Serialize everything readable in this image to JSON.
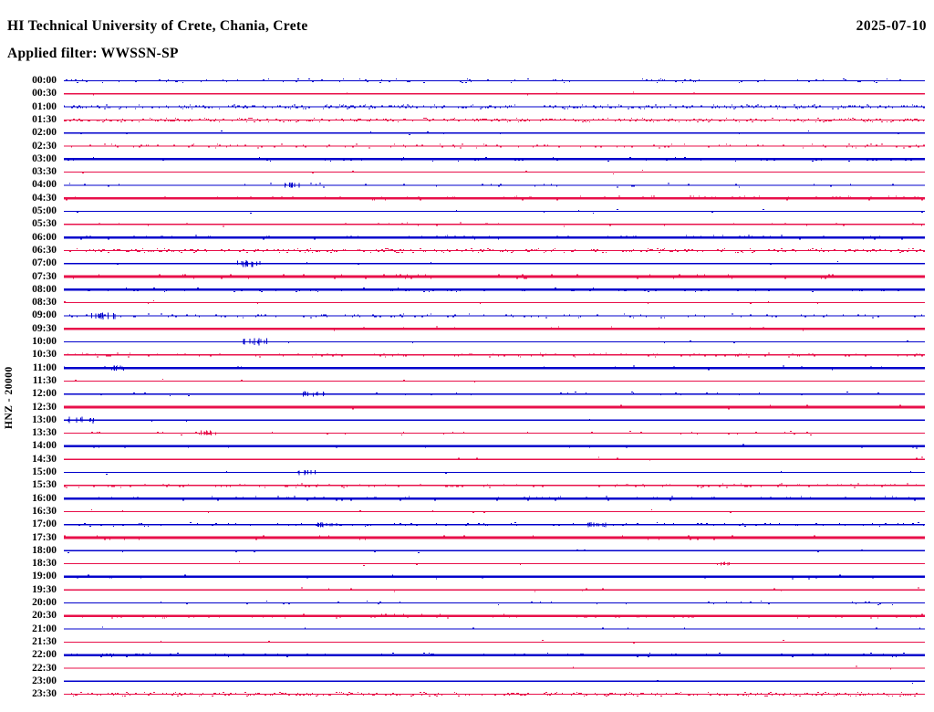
{
  "chart_data": {
    "type": "line",
    "subtype": "helicorder",
    "title": "HI Technical University of Crete, Chania, Crete",
    "date": "2025-07-10",
    "filter_label": "Applied filter: WWSSN-SP",
    "channel_label": "HNZ - 20000",
    "station": "HI",
    "channel": "HNZ",
    "scale": "20000",
    "filter": "WWSSN-SP",
    "row_interval_minutes": 30,
    "x_range_minutes": [
      0,
      30
    ],
    "rows_count": 48,
    "legend_position": "none",
    "grid": "off",
    "trace_colors": {
      "blue": "#0000cc",
      "red": "#e8104a"
    },
    "background_color": "#ffffff",
    "text_color": "#000000",
    "rows": [
      {
        "time": "00:00",
        "color": "blue",
        "weight": "thin",
        "noise": "medium",
        "events": []
      },
      {
        "time": "00:30",
        "color": "red",
        "weight": "thin",
        "noise": "quiet",
        "events": []
      },
      {
        "time": "01:00",
        "color": "blue",
        "weight": "thin",
        "noise": "dense",
        "events": []
      },
      {
        "time": "01:30",
        "color": "red",
        "weight": "thin",
        "noise": "dense",
        "events": []
      },
      {
        "time": "02:00",
        "color": "blue",
        "weight": "thin",
        "noise": "quiet",
        "events": []
      },
      {
        "time": "02:30",
        "color": "red",
        "weight": "thin",
        "noise": "medium",
        "events": []
      },
      {
        "time": "03:00",
        "color": "blue",
        "weight": "bold",
        "noise": "medium",
        "events": []
      },
      {
        "time": "03:30",
        "color": "red",
        "weight": "thin",
        "noise": "quiet",
        "events": []
      },
      {
        "time": "04:00",
        "color": "blue",
        "weight": "thin",
        "noise": "sparse",
        "events": [
          {
            "min": 7.9,
            "amp": 2
          }
        ]
      },
      {
        "time": "04:30",
        "color": "red",
        "weight": "bold",
        "noise": "medium",
        "events": []
      },
      {
        "time": "05:00",
        "color": "blue",
        "weight": "thin",
        "noise": "quiet",
        "events": []
      },
      {
        "time": "05:30",
        "color": "red",
        "weight": "thin",
        "noise": "sparse",
        "events": []
      },
      {
        "time": "06:00",
        "color": "blue",
        "weight": "bold",
        "noise": "medium",
        "events": []
      },
      {
        "time": "06:30",
        "color": "red",
        "weight": "thin",
        "noise": "dense",
        "events": []
      },
      {
        "time": "07:00",
        "color": "blue",
        "weight": "thin",
        "noise": "quiet",
        "events": [
          {
            "min": 6.4,
            "amp": 3
          }
        ]
      },
      {
        "time": "07:30",
        "color": "red",
        "weight": "bold",
        "noise": "dense",
        "events": []
      },
      {
        "time": "08:00",
        "color": "blue",
        "weight": "bold",
        "noise": "medium",
        "events": []
      },
      {
        "time": "08:30",
        "color": "red",
        "weight": "thin",
        "noise": "quiet",
        "events": []
      },
      {
        "time": "09:00",
        "color": "blue",
        "weight": "thin",
        "noise": "medium",
        "events": [
          {
            "min": 1.4,
            "amp": 3
          }
        ]
      },
      {
        "time": "09:30",
        "color": "red",
        "weight": "bold",
        "noise": "sparse",
        "events": []
      },
      {
        "time": "10:00",
        "color": "blue",
        "weight": "thin",
        "noise": "quiet",
        "events": [
          {
            "min": 6.6,
            "amp": 3
          }
        ]
      },
      {
        "time": "10:30",
        "color": "red",
        "weight": "thin",
        "noise": "medium",
        "events": []
      },
      {
        "time": "11:00",
        "color": "blue",
        "weight": "bold",
        "noise": "sparse",
        "events": [
          {
            "min": 1.9,
            "amp": 2
          }
        ]
      },
      {
        "time": "11:30",
        "color": "red",
        "weight": "thin",
        "noise": "quiet",
        "events": []
      },
      {
        "time": "12:00",
        "color": "blue",
        "weight": "thin",
        "noise": "sparse",
        "events": [
          {
            "min": 8.7,
            "amp": 2
          }
        ]
      },
      {
        "time": "12:30",
        "color": "red",
        "weight": "bold",
        "noise": "sparse",
        "events": []
      },
      {
        "time": "13:00",
        "color": "blue",
        "weight": "thin",
        "noise": "quiet",
        "events": [
          {
            "min": 0.6,
            "amp": 3
          }
        ]
      },
      {
        "time": "13:30",
        "color": "red",
        "weight": "thin",
        "noise": "sparse",
        "events": [
          {
            "min": 5.1,
            "amp": 2
          }
        ]
      },
      {
        "time": "14:00",
        "color": "blue",
        "weight": "bold",
        "noise": "sparse",
        "events": []
      },
      {
        "time": "14:30",
        "color": "red",
        "weight": "thin",
        "noise": "quiet",
        "events": []
      },
      {
        "time": "15:00",
        "color": "blue",
        "weight": "thin",
        "noise": "quiet",
        "events": [
          {
            "min": 8.4,
            "amp": 2
          }
        ]
      },
      {
        "time": "15:30",
        "color": "red",
        "weight": "thin",
        "noise": "medium",
        "events": []
      },
      {
        "time": "16:00",
        "color": "blue",
        "weight": "bold",
        "noise": "medium",
        "events": []
      },
      {
        "time": "16:30",
        "color": "red",
        "weight": "thin",
        "noise": "quiet",
        "events": []
      },
      {
        "time": "17:00",
        "color": "blue",
        "weight": "thin",
        "noise": "medium",
        "events": [
          {
            "min": 9.2,
            "amp": 2
          },
          {
            "min": 18.6,
            "amp": 2
          }
        ]
      },
      {
        "time": "17:30",
        "color": "red",
        "weight": "bold",
        "noise": "medium",
        "events": []
      },
      {
        "time": "18:00",
        "color": "blue",
        "weight": "thin",
        "noise": "quiet",
        "events": []
      },
      {
        "time": "18:30",
        "color": "red",
        "weight": "thin",
        "noise": "quiet",
        "events": [
          {
            "min": 22.9,
            "amp": 1
          }
        ]
      },
      {
        "time": "19:00",
        "color": "blue",
        "weight": "bold",
        "noise": "sparse",
        "events": []
      },
      {
        "time": "19:30",
        "color": "red",
        "weight": "thin",
        "noise": "quiet",
        "events": []
      },
      {
        "time": "20:00",
        "color": "blue",
        "weight": "thin",
        "noise": "sparse",
        "events": []
      },
      {
        "time": "20:30",
        "color": "red",
        "weight": "bold",
        "noise": "medium",
        "events": []
      },
      {
        "time": "21:00",
        "color": "blue",
        "weight": "thin",
        "noise": "quiet",
        "events": []
      },
      {
        "time": "21:30",
        "color": "red",
        "weight": "thin",
        "noise": "quiet",
        "events": []
      },
      {
        "time": "22:00",
        "color": "blue",
        "weight": "bold",
        "noise": "medium",
        "events": []
      },
      {
        "time": "22:30",
        "color": "red",
        "weight": "thin",
        "noise": "quiet",
        "events": []
      },
      {
        "time": "23:00",
        "color": "blue",
        "weight": "thin",
        "noise": "quiet",
        "events": []
      },
      {
        "time": "23:30",
        "color": "red",
        "weight": "thin",
        "noise": "dense",
        "events": []
      }
    ]
  }
}
